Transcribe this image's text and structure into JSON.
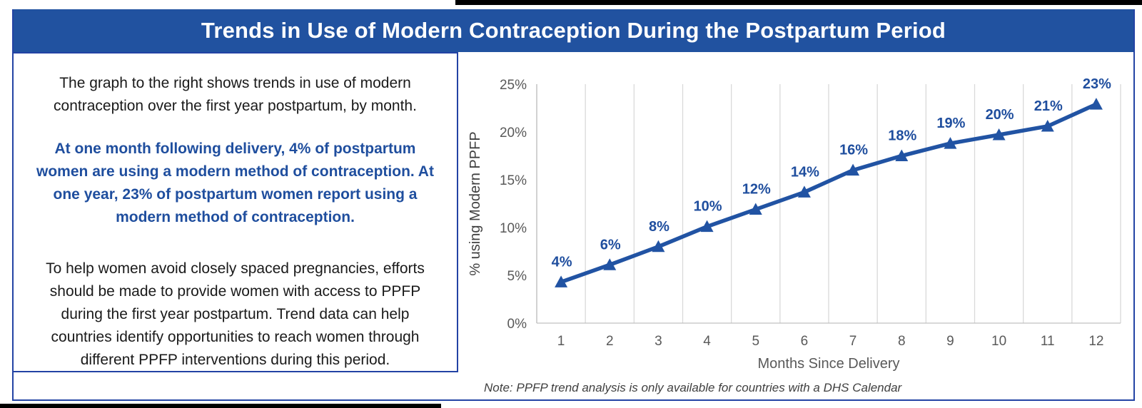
{
  "page": {
    "title": "Trends in Use of Modern Contraception During the Postpartum Period"
  },
  "colors": {
    "title_bar_bg": "#2152a0",
    "panel_border": "#2343a4",
    "accent_text_blue": "#1f4e9e",
    "line_blue": "#2153a3",
    "gridline": "#d9d9d9",
    "axis_line": "#c0c0c0",
    "tick_label": "#595959",
    "axis_title_gray": "#595959",
    "y_axis_title_gray": "#404040",
    "body_text": "#1a1a1a"
  },
  "left_panel": {
    "paragraph_intro": "The graph to the right shows trends in use of modern contraception over the first year postpartum, by month.",
    "paragraph_highlight": "At one month following delivery, 4% of postpartum women are using a modern method of contraception. At one year, 23% of postpartum women report using a modern method of contraception.",
    "paragraph_recommendation": "To help women avoid closely spaced pregnancies, efforts should be made to provide women with access to PPFP during the first year postpartum. Trend data can help countries identify opportunities to reach women through different PPFP interventions during this period."
  },
  "chart_data": {
    "type": "line",
    "title": "",
    "categories": [
      "1",
      "2",
      "3",
      "4",
      "5",
      "6",
      "7",
      "8",
      "9",
      "10",
      "11",
      "12"
    ],
    "series": [
      {
        "name": "% using Modern PPFP",
        "values": [
          4,
          6,
          8,
          10,
          12,
          14,
          16,
          18,
          19,
          20,
          21,
          23
        ]
      }
    ],
    "data_labels": [
      "4%",
      "6%",
      "8%",
      "10%",
      "12%",
      "14%",
      "16%",
      "18%",
      "19%",
      "20%",
      "21%",
      "23%"
    ],
    "plotted_values": [
      4.3,
      6.1,
      8.0,
      10.1,
      11.9,
      13.7,
      16.0,
      17.5,
      18.8,
      19.7,
      20.6,
      22.9
    ],
    "xlabel": "Months Since Delivery",
    "ylabel": "% using Modern PPFP",
    "ylim": [
      0,
      25
    ],
    "ytick_step": 5,
    "ytick_labels": [
      "0%",
      "5%",
      "10%",
      "15%",
      "20%",
      "25%"
    ],
    "grid": "vertical-major-only",
    "legend": "none",
    "marker": "triangle-up"
  },
  "footnote": "Note: PPFP trend analysis is only available for countries with a DHS Calendar"
}
